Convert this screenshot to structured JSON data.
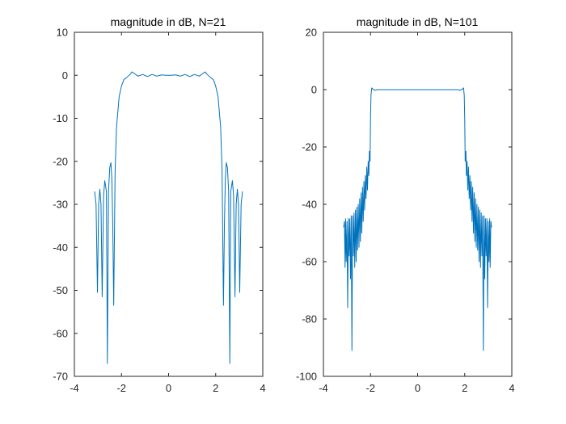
{
  "figure": {
    "background": "#ffffff",
    "axis_color": "#262626",
    "line_color": "#0072BD"
  },
  "chart_data": [
    {
      "type": "line",
      "title": "magnitude in dB, N=21",
      "xlabel": "",
      "ylabel": "",
      "xlim": [
        -4,
        4
      ],
      "ylim": [
        -70,
        10
      ],
      "xticks": [
        -4,
        -2,
        0,
        2,
        4
      ],
      "yticks": [
        -70,
        -60,
        -50,
        -40,
        -30,
        -20,
        -10,
        0,
        10
      ],
      "grid": false,
      "series": [
        {
          "color": "#0072BD",
          "x": [
            -3.14,
            -3.08,
            -3.02,
            -2.97,
            -2.92,
            -2.87,
            -2.82,
            -2.76,
            -2.71,
            -2.64,
            -2.6,
            -2.55,
            -2.5,
            -2.45,
            -2.41,
            -2.37,
            -2.33,
            -2.27,
            -2.21,
            -2.1,
            -2.0,
            -1.9,
            -1.8,
            -1.72,
            -1.64,
            -1.55,
            -1.45,
            -1.3,
            -1.1,
            -0.9,
            -0.7,
            -0.5,
            -0.3,
            -0.1,
            0.0,
            0.1,
            0.3,
            0.5,
            0.7,
            0.9,
            1.1,
            1.3,
            1.45,
            1.55,
            1.64,
            1.72,
            1.8,
            1.9,
            2.0,
            2.1,
            2.21,
            2.27,
            2.33,
            2.37,
            2.41,
            2.45,
            2.5,
            2.55,
            2.6,
            2.64,
            2.71,
            2.76,
            2.82,
            2.87,
            2.92,
            2.97,
            3.02,
            3.08,
            3.14
          ],
          "y": [
            -27,
            -30,
            -50.5,
            -30,
            -26.5,
            -30,
            -51.5,
            -28,
            -24.5,
            -27,
            -67,
            -27,
            -21.5,
            -20.3,
            -24,
            -35,
            -53.5,
            -22,
            -12,
            -5,
            -2.5,
            -1.0,
            -0.6,
            -0.2,
            0.2,
            0.8,
            0.4,
            -0.2,
            0.2,
            -0.3,
            0.2,
            -0.2,
            0.1,
            0.0,
            0.0,
            0.0,
            0.1,
            -0.2,
            0.2,
            -0.3,
            0.2,
            -0.2,
            0.4,
            0.8,
            0.2,
            -0.2,
            -0.6,
            -1.0,
            -2.5,
            -5,
            -12,
            -22,
            -53.5,
            -35,
            -24,
            -20.3,
            -21.5,
            -27,
            -67,
            -27,
            -24.5,
            -28,
            -51.5,
            -30,
            -26.5,
            -30,
            -50.5,
            -30,
            -27
          ]
        }
      ]
    },
    {
      "type": "line",
      "title": "magnitude in dB, N=101",
      "xlabel": "",
      "ylabel": "",
      "xlim": [
        -4,
        4
      ],
      "ylim": [
        -100,
        20
      ],
      "xticks": [
        -4,
        -2,
        0,
        2,
        4
      ],
      "yticks": [
        -100,
        -80,
        -60,
        -40,
        -20,
        0,
        20
      ],
      "grid": false,
      "series": [
        {
          "color": "#0072BD",
          "x": [
            -3.14,
            -3.11,
            -3.08,
            -3.06,
            -3.03,
            -3.0,
            -2.97,
            -2.94,
            -2.91,
            -2.88,
            -2.85,
            -2.82,
            -2.79,
            -2.76,
            -2.73,
            -2.7,
            -2.67,
            -2.64,
            -2.61,
            -2.58,
            -2.55,
            -2.52,
            -2.49,
            -2.46,
            -2.43,
            -2.4,
            -2.37,
            -2.34,
            -2.31,
            -2.28,
            -2.25,
            -2.22,
            -2.19,
            -2.16,
            -2.13,
            -2.1,
            -2.07,
            -2.05,
            -2.02,
            -2.0,
            -1.98,
            -1.95,
            -1.9,
            -1.85,
            -1.8,
            -1.7,
            -1.5,
            -1.2,
            -0.8,
            -0.4,
            0.0,
            0.4,
            0.8,
            1.2,
            1.5,
            1.7,
            1.8,
            1.85,
            1.9,
            1.95,
            1.98,
            2.0,
            2.02,
            2.05,
            2.07,
            2.1,
            2.13,
            2.16,
            2.19,
            2.22,
            2.25,
            2.28,
            2.31,
            2.34,
            2.37,
            2.4,
            2.43,
            2.46,
            2.49,
            2.52,
            2.55,
            2.58,
            2.61,
            2.64,
            2.67,
            2.7,
            2.73,
            2.76,
            2.79,
            2.82,
            2.85,
            2.88,
            2.91,
            2.94,
            2.97,
            3.0,
            3.03,
            3.06,
            3.08,
            3.11,
            3.14
          ],
          "y": [
            -48,
            -46,
            -62,
            -45,
            -60,
            -46,
            -76,
            -45,
            -58,
            -45,
            -66,
            -44,
            -91,
            -44,
            -58,
            -43,
            -62,
            -42,
            -60,
            -41,
            -56,
            -40,
            -55,
            -38,
            -53,
            -36,
            -50,
            -34,
            -46,
            -32,
            -42,
            -30,
            -38,
            -27,
            -35,
            -25,
            -30,
            -21.5,
            -25,
            -10,
            -2,
            0.6,
            0.2,
            0.0,
            -0.2,
            0.0,
            0.0,
            0.0,
            0.0,
            0.0,
            0.0,
            0.0,
            0.0,
            0.0,
            0.0,
            0.0,
            -0.2,
            0.0,
            0.2,
            0.6,
            -2,
            -10,
            -25,
            -21.5,
            -30,
            -25,
            -35,
            -27,
            -38,
            -30,
            -42,
            -32,
            -46,
            -34,
            -50,
            -36,
            -53,
            -38,
            -55,
            -40,
            -56,
            -41,
            -60,
            -42,
            -62,
            -43,
            -58,
            -44,
            -91,
            -44,
            -66,
            -45,
            -58,
            -45,
            -76,
            -46,
            -60,
            -45,
            -62,
            -46,
            -48
          ]
        }
      ]
    }
  ]
}
